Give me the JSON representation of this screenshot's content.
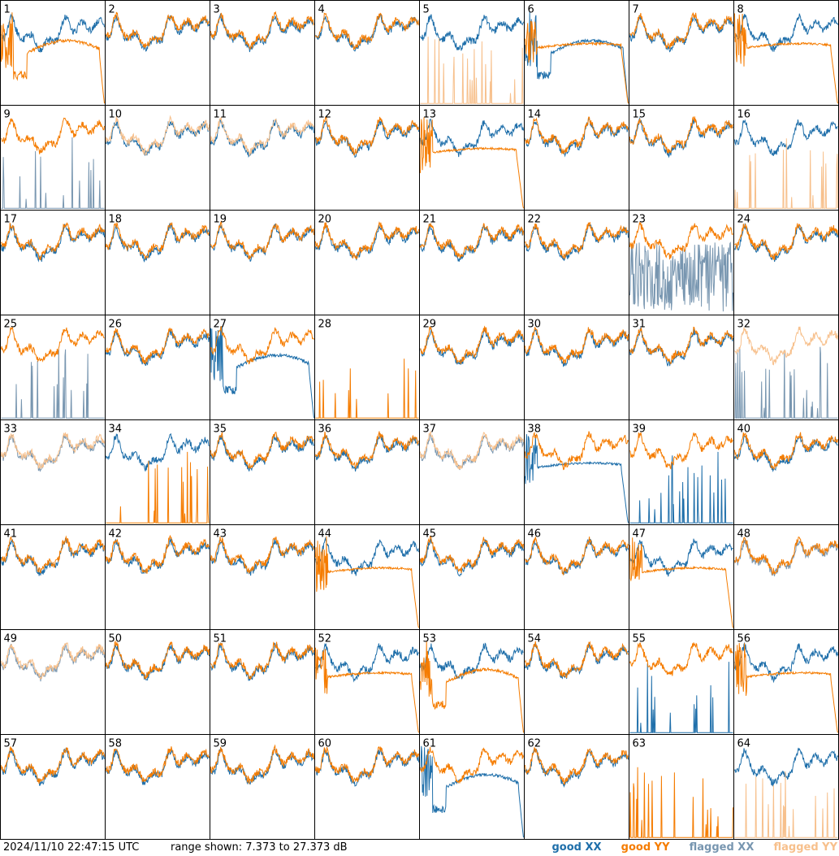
{
  "footer": {
    "timestamp": "2024/11/10 22:47:15 UTC",
    "range_text": "range shown: 7.373 to 27.373 dB"
  },
  "legend": [
    {
      "label": "good XX",
      "color": "#1f6faa"
    },
    {
      "label": "good YY",
      "color": "#f57c00"
    },
    {
      "label": "flagged XX",
      "color": "#7896b0"
    },
    {
      "label": "flagged YY",
      "color": "#f7c08c"
    }
  ],
  "chart_data": {
    "type": "line",
    "layout": "small-multiples 8x8",
    "ylim": [
      7.373,
      27.373
    ],
    "x": "channel index",
    "panels": [
      {
        "label": "1",
        "xx": "good",
        "yy": "good",
        "xx_shape": "normal",
        "yy_shape": "drop"
      },
      {
        "label": "2",
        "xx": "good",
        "yy": "good",
        "xx_shape": "normal",
        "yy_shape": "normal"
      },
      {
        "label": "3",
        "xx": "good",
        "yy": "good",
        "xx_shape": "normal",
        "yy_shape": "normal"
      },
      {
        "label": "4",
        "xx": "good",
        "yy": "good",
        "xx_shape": "normal",
        "yy_shape": "normal"
      },
      {
        "label": "5",
        "xx": "good",
        "yy": "flagged",
        "xx_shape": "normal",
        "yy_shape": "spiky"
      },
      {
        "label": "6",
        "xx": "good",
        "yy": "good",
        "xx_shape": "drop",
        "yy_shape": "flat"
      },
      {
        "label": "7",
        "xx": "good",
        "yy": "good",
        "xx_shape": "normal",
        "yy_shape": "normal"
      },
      {
        "label": "8",
        "xx": "good",
        "yy": "good",
        "xx_shape": "normal",
        "yy_shape": "flat"
      },
      {
        "label": "9",
        "xx": "flagged",
        "yy": "good",
        "xx_shape": "spiky",
        "yy_shape": "normal"
      },
      {
        "label": "10",
        "xx": "good",
        "yy": "flagged",
        "xx_shape": "normal",
        "yy_shape": "normal"
      },
      {
        "label": "11",
        "xx": "good",
        "yy": "flagged",
        "xx_shape": "normal",
        "yy_shape": "normal"
      },
      {
        "label": "12",
        "xx": "good",
        "yy": "good",
        "xx_shape": "normal",
        "yy_shape": "normal"
      },
      {
        "label": "13",
        "xx": "good",
        "yy": "good",
        "xx_shape": "normal",
        "yy_shape": "flat"
      },
      {
        "label": "14",
        "xx": "good",
        "yy": "good",
        "xx_shape": "normal",
        "yy_shape": "normal"
      },
      {
        "label": "15",
        "xx": "good",
        "yy": "good",
        "xx_shape": "normal",
        "yy_shape": "normal"
      },
      {
        "label": "16",
        "xx": "good",
        "yy": "flagged",
        "xx_shape": "normal",
        "yy_shape": "spiky"
      },
      {
        "label": "17",
        "xx": "good",
        "yy": "good",
        "xx_shape": "normal",
        "yy_shape": "normal"
      },
      {
        "label": "18",
        "xx": "good",
        "yy": "good",
        "xx_shape": "normal",
        "yy_shape": "normal"
      },
      {
        "label": "19",
        "xx": "good",
        "yy": "good",
        "xx_shape": "normal",
        "yy_shape": "normal"
      },
      {
        "label": "20",
        "xx": "good",
        "yy": "good",
        "xx_shape": "normal",
        "yy_shape": "normal"
      },
      {
        "label": "21",
        "xx": "good",
        "yy": "good",
        "xx_shape": "normal",
        "yy_shape": "normal"
      },
      {
        "label": "22",
        "xx": "good",
        "yy": "good",
        "xx_shape": "normal",
        "yy_shape": "normal"
      },
      {
        "label": "23",
        "xx": "flagged",
        "yy": "good",
        "xx_shape": "noisy",
        "yy_shape": "normal"
      },
      {
        "label": "24",
        "xx": "good",
        "yy": "good",
        "xx_shape": "normal",
        "yy_shape": "normal"
      },
      {
        "label": "25",
        "xx": "flagged",
        "yy": "good",
        "xx_shape": "spiky",
        "yy_shape": "normal"
      },
      {
        "label": "26",
        "xx": "good",
        "yy": "good",
        "xx_shape": "normal",
        "yy_shape": "normal"
      },
      {
        "label": "27",
        "xx": "good",
        "yy": "good",
        "xx_shape": "drop",
        "yy_shape": "normal"
      },
      {
        "label": "28",
        "xx": "none",
        "yy": "good",
        "xx_shape": "none",
        "yy_shape": "spiky"
      },
      {
        "label": "29",
        "xx": "good",
        "yy": "good",
        "xx_shape": "normal",
        "yy_shape": "normal"
      },
      {
        "label": "30",
        "xx": "good",
        "yy": "good",
        "xx_shape": "normal",
        "yy_shape": "normal"
      },
      {
        "label": "31",
        "xx": "good",
        "yy": "good",
        "xx_shape": "normal",
        "yy_shape": "normal"
      },
      {
        "label": "32",
        "xx": "flagged",
        "yy": "flagged",
        "xx_shape": "spiky",
        "yy_shape": "normal"
      },
      {
        "label": "33",
        "xx": "flagged",
        "yy": "flagged",
        "xx_shape": "normal",
        "yy_shape": "normal"
      },
      {
        "label": "34",
        "xx": "good",
        "yy": "good",
        "xx_shape": "normal",
        "yy_shape": "spiky"
      },
      {
        "label": "35",
        "xx": "good",
        "yy": "good",
        "xx_shape": "normal",
        "yy_shape": "normal"
      },
      {
        "label": "36",
        "xx": "good",
        "yy": "good",
        "xx_shape": "normal",
        "yy_shape": "normal"
      },
      {
        "label": "37",
        "xx": "flagged",
        "yy": "flagged",
        "xx_shape": "normal",
        "yy_shape": "normal"
      },
      {
        "label": "38",
        "xx": "good",
        "yy": "good",
        "xx_shape": "flat",
        "yy_shape": "normal"
      },
      {
        "label": "39",
        "xx": "good",
        "yy": "good",
        "xx_shape": "spiky",
        "yy_shape": "normal"
      },
      {
        "label": "40",
        "xx": "good",
        "yy": "good",
        "xx_shape": "normal",
        "yy_shape": "normal"
      },
      {
        "label": "41",
        "xx": "good",
        "yy": "good",
        "xx_shape": "normal",
        "yy_shape": "normal"
      },
      {
        "label": "42",
        "xx": "good",
        "yy": "good",
        "xx_shape": "normal",
        "yy_shape": "normal"
      },
      {
        "label": "43",
        "xx": "good",
        "yy": "good",
        "xx_shape": "normal",
        "yy_shape": "normal"
      },
      {
        "label": "44",
        "xx": "good",
        "yy": "good",
        "xx_shape": "normal",
        "yy_shape": "flat"
      },
      {
        "label": "45",
        "xx": "good",
        "yy": "good",
        "xx_shape": "normal",
        "yy_shape": "normal"
      },
      {
        "label": "46",
        "xx": "good",
        "yy": "good",
        "xx_shape": "normal",
        "yy_shape": "normal"
      },
      {
        "label": "47",
        "xx": "good",
        "yy": "good",
        "xx_shape": "normal",
        "yy_shape": "flat"
      },
      {
        "label": "48",
        "xx": "flagged",
        "yy": "good",
        "xx_shape": "normal",
        "yy_shape": "normal"
      },
      {
        "label": "49",
        "xx": "flagged",
        "yy": "flagged",
        "xx_shape": "normal",
        "yy_shape": "normal"
      },
      {
        "label": "50",
        "xx": "good",
        "yy": "good",
        "xx_shape": "normal",
        "yy_shape": "normal"
      },
      {
        "label": "51",
        "xx": "good",
        "yy": "good",
        "xx_shape": "normal",
        "yy_shape": "normal"
      },
      {
        "label": "52",
        "xx": "good",
        "yy": "good",
        "xx_shape": "normal",
        "yy_shape": "flat"
      },
      {
        "label": "53",
        "xx": "good",
        "yy": "good",
        "xx_shape": "normal",
        "yy_shape": "drop"
      },
      {
        "label": "54",
        "xx": "good",
        "yy": "good",
        "xx_shape": "normal",
        "yy_shape": "normal"
      },
      {
        "label": "55",
        "xx": "good",
        "yy": "good",
        "xx_shape": "spiky",
        "yy_shape": "normal"
      },
      {
        "label": "56",
        "xx": "good",
        "yy": "good",
        "xx_shape": "normal",
        "yy_shape": "flat"
      },
      {
        "label": "57",
        "xx": "good",
        "yy": "good",
        "xx_shape": "normal",
        "yy_shape": "normal"
      },
      {
        "label": "58",
        "xx": "good",
        "yy": "good",
        "xx_shape": "normal",
        "yy_shape": "normal"
      },
      {
        "label": "59",
        "xx": "good",
        "yy": "good",
        "xx_shape": "normal",
        "yy_shape": "normal"
      },
      {
        "label": "60",
        "xx": "good",
        "yy": "good",
        "xx_shape": "normal",
        "yy_shape": "normal"
      },
      {
        "label": "61",
        "xx": "good",
        "yy": "good",
        "xx_shape": "drop",
        "yy_shape": "normal"
      },
      {
        "label": "62",
        "xx": "good",
        "yy": "good",
        "xx_shape": "normal",
        "yy_shape": "normal"
      },
      {
        "label": "63",
        "xx": "none",
        "yy": "good",
        "xx_shape": "none",
        "yy_shape": "spiky"
      },
      {
        "label": "64",
        "xx": "good",
        "yy": "flagged",
        "xx_shape": "normal",
        "yy_shape": "spiky"
      }
    ]
  }
}
